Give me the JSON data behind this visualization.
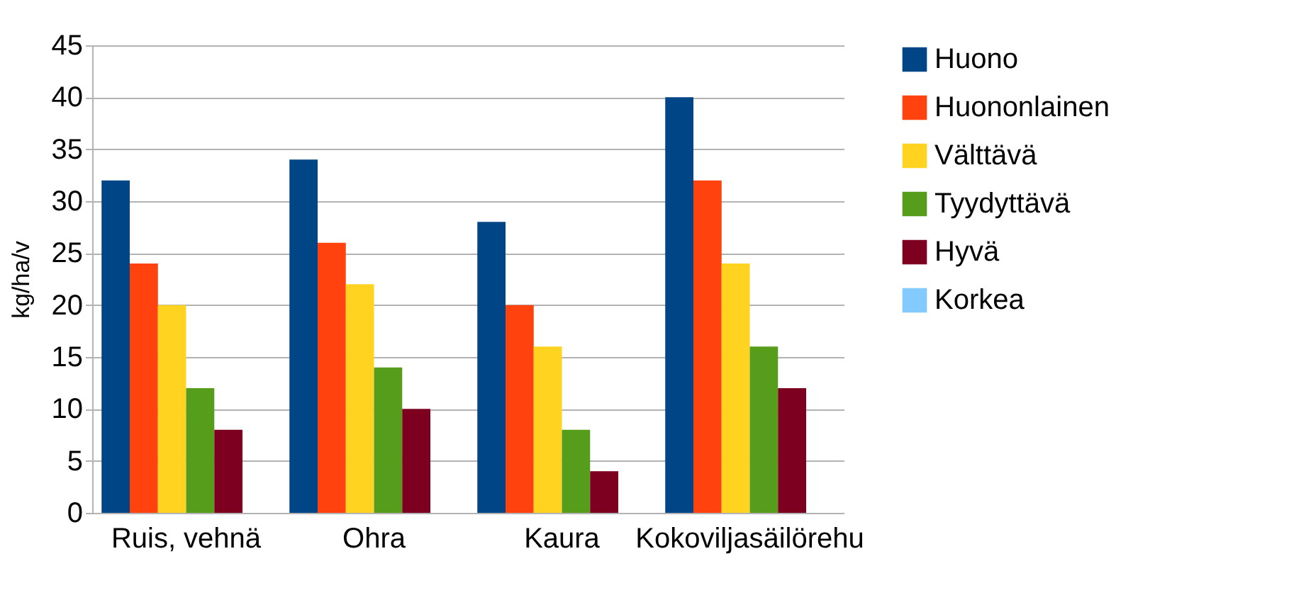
{
  "chart_data": {
    "type": "bar",
    "ylabel": "kg/ha/v",
    "categories": [
      "Ruis, vehnä",
      "Ohra",
      "Kaura",
      "Kokoviljasäilörehu"
    ],
    "series": [
      {
        "name": "Huono",
        "color": "#004586",
        "values": [
          32,
          34,
          28,
          40
        ]
      },
      {
        "name": "Huononlainen",
        "color": "#ff420e",
        "values": [
          24,
          26,
          20,
          32
        ]
      },
      {
        "name": "Välttävä",
        "color": "#ffd320",
        "values": [
          20,
          22,
          16,
          24
        ]
      },
      {
        "name": "Tyydyttävä",
        "color": "#579d1c",
        "values": [
          12,
          14,
          8,
          16
        ]
      },
      {
        "name": "Hyvä",
        "color": "#7e0021",
        "values": [
          8,
          10,
          4,
          12
        ]
      },
      {
        "name": "Korkea",
        "color": "#83caff",
        "values": [
          0,
          0,
          0,
          0
        ]
      }
    ],
    "ylim": [
      0,
      45
    ],
    "yticks": [
      0,
      5,
      10,
      15,
      20,
      25,
      30,
      35,
      40,
      45
    ],
    "grid": "y",
    "legend": "right"
  }
}
